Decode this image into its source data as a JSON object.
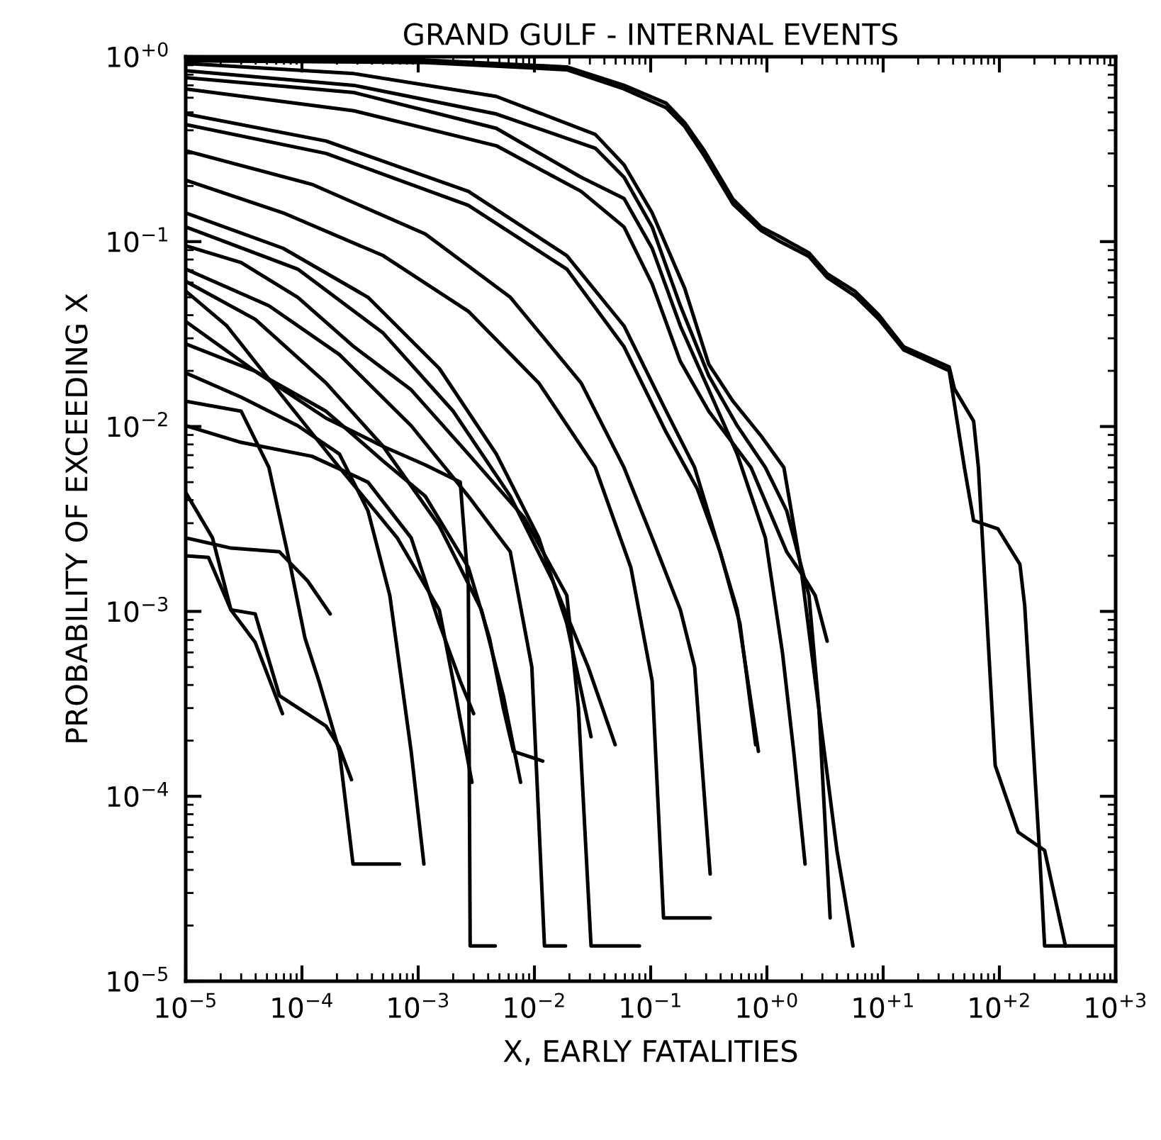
{
  "chart_data": {
    "type": "line",
    "title": "GRAND GULF - INTERNAL EVENTS",
    "xlabel": "X, EARLY FATALITIES",
    "ylabel": "PROBABILITY OF EXCEEDING X",
    "log": "xy",
    "grid": false,
    "legend": false,
    "marker": "none",
    "line_style": "solid",
    "xlim": [
      1e-05,
      1000
    ],
    "ylim": [
      1e-05,
      1
    ],
    "xticks": [
      {
        "value": 1e-05,
        "label": "10$^{−5}$"
      },
      {
        "value": 0.0001,
        "label": "10$^{−4}$"
      },
      {
        "value": 0.001,
        "label": "10$^{−3}$"
      },
      {
        "value": 0.01,
        "label": "10$^{−2}$"
      },
      {
        "value": 0.1,
        "label": "10$^{−1}$"
      },
      {
        "value": 1,
        "label": "10$^{+0}$"
      },
      {
        "value": 10,
        "label": "10$^{+1}$"
      },
      {
        "value": 100,
        "label": "10$^{+2}$"
      },
      {
        "value": 1000,
        "label": "10$^{+3}$"
      }
    ],
    "yticks": [
      {
        "value": 1e-05,
        "label": "10$^{−5}$"
      },
      {
        "value": 0.0001,
        "label": "10$^{−4}$"
      },
      {
        "value": 0.001,
        "label": "10$^{−3}$"
      },
      {
        "value": 0.01,
        "label": "10$^{−2}$"
      },
      {
        "value": 0.1,
        "label": "10$^{−1}$"
      },
      {
        "value": 1,
        "label": "10$^{+0}$"
      }
    ],
    "series": [
      {
        "color": "#000000",
        "x": [
          1e-05,
          0.00115,
          0.019,
          0.059,
          0.136,
          0.196,
          0.29,
          0.51,
          0.89,
          1.3,
          2.3,
          3.3,
          5.7,
          9.2,
          15,
          37,
          41,
          60,
          66,
          92,
          145,
          245,
          370
        ],
        "values": [
          0.98,
          0.96,
          0.88,
          0.7,
          0.56,
          0.44,
          0.31,
          0.17,
          0.12,
          0.106,
          0.087,
          0.067,
          0.054,
          0.04,
          0.027,
          0.021,
          0.016,
          0.0107,
          0.006,
          0.000147,
          6.4e-05,
          5.1e-05,
          1.55e-05
        ]
      },
      {
        "color": "#000000",
        "x": [
          1e-05,
          0.00115,
          0.019,
          0.059,
          0.136,
          0.196,
          0.29,
          0.51,
          0.89,
          1.3,
          2.3,
          3.3,
          5.7,
          9.2,
          15,
          37,
          50,
          60,
          97,
          150,
          165,
          220,
          245,
          950
        ],
        "values": [
          0.95,
          0.93,
          0.85,
          0.67,
          0.53,
          0.42,
          0.29,
          0.16,
          0.115,
          0.1,
          0.083,
          0.064,
          0.051,
          0.038,
          0.026,
          0.02,
          0.006,
          0.0031,
          0.0028,
          0.0018,
          0.00108,
          5.4e-05,
          1.55e-05,
          1.55e-05
        ]
      },
      {
        "color": "#000000",
        "x": [
          1e-05,
          0.00028,
          0.0047,
          0.0334,
          0.059,
          0.103,
          0.196,
          0.316,
          0.51,
          0.89,
          1.4,
          1.96,
          3.0,
          4.0,
          5.5
        ],
        "values": [
          0.92,
          0.81,
          0.61,
          0.38,
          0.26,
          0.143,
          0.056,
          0.0217,
          0.0137,
          0.0089,
          0.006,
          0.00173,
          0.00021,
          5.1e-05,
          1.55e-05
        ]
      },
      {
        "color": "#000000",
        "x": [
          1e-05,
          0.00028,
          0.0047,
          0.0334,
          0.059,
          0.103,
          0.18,
          0.316,
          0.555,
          0.97,
          1.48,
          2.3,
          2.8,
          3.5
        ],
        "values": [
          0.84,
          0.7,
          0.49,
          0.32,
          0.223,
          0.12,
          0.045,
          0.0188,
          0.0101,
          0.006,
          0.0035,
          0.00122,
          0.0003,
          2.2e-05
        ]
      },
      {
        "color": "#000000",
        "x": [
          1e-05,
          0.00028,
          0.0047,
          0.0252,
          0.059,
          0.103,
          0.18,
          0.316,
          0.73,
          1.48,
          2.13,
          2.6,
          3.3
        ],
        "values": [
          0.67,
          0.51,
          0.33,
          0.187,
          0.12,
          0.059,
          0.0225,
          0.0121,
          0.006,
          0.0021,
          0.0015,
          0.00122,
          0.00069
        ]
      },
      {
        "color": "#000000",
        "x": [
          1e-05,
          0.000161,
          0.0027,
          0.019,
          0.059,
          0.136,
          0.239,
          0.364,
          0.555,
          0.845
        ],
        "values": [
          0.49,
          0.35,
          0.187,
          0.084,
          0.035,
          0.0121,
          0.006,
          0.0025,
          0.00102,
          0.000175
        ]
      },
      {
        "color": "#000000",
        "x": [
          1e-05,
          0.000161,
          0.0027,
          0.019,
          0.059,
          0.136,
          0.252,
          0.396,
          0.586,
          0.8
        ],
        "values": [
          0.43,
          0.3,
          0.157,
          0.071,
          0.027,
          0.0093,
          0.0046,
          0.0021,
          0.00086,
          0.00019
        ]
      },
      {
        "color": "#000000",
        "x": [
          1e-05,
          0.000122,
          0.00115,
          0.0062,
          0.0252,
          0.059,
          0.103,
          0.18,
          0.239,
          0.325
        ],
        "values": [
          0.31,
          0.204,
          0.11,
          0.05,
          0.0172,
          0.006,
          0.0025,
          0.00102,
          0.0005,
          3.8e-05
        ]
      },
      {
        "color": "#000000",
        "x": [
          1e-05,
          6.9e-05,
          0.0005,
          0.0027,
          0.0109,
          0.0334,
          0.0675,
          0.103,
          0.129,
          0.325
        ],
        "values": [
          0.215,
          0.143,
          0.084,
          0.042,
          0.0172,
          0.006,
          0.00173,
          0.00042,
          2.2e-05,
          2.2e-05
        ]
      },
      {
        "color": "#000000",
        "x": [
          1e-05,
          0.00028,
          0.0047,
          0.0252,
          0.059,
          0.103,
          0.18,
          0.316,
          0.555,
          0.97,
          1.36,
          1.7,
          2.13
        ],
        "values": [
          0.77,
          0.64,
          0.41,
          0.223,
          0.171,
          0.092,
          0.035,
          0.0158,
          0.0071,
          0.0025,
          0.0006,
          0.000175,
          4.3e-05
        ]
      },
      {
        "color": "#000000",
        "x": [
          1e-05,
          3e-05,
          9.2e-05,
          0.00028,
          0.00087,
          0.0027,
          0.0082,
          0.019,
          0.0239,
          0.0307,
          0.08
        ],
        "values": [
          0.095,
          0.077,
          0.05,
          0.027,
          0.0158,
          0.0071,
          0.0032,
          0.00122,
          0.0003,
          1.55e-05,
          1.55e-05
        ]
      },
      {
        "color": "#000000",
        "x": [
          1e-05,
          5.2e-05,
          0.00021,
          0.00087,
          0.0027,
          0.0062,
          0.0095,
          0.0122,
          0.0185
        ],
        "values": [
          0.071,
          0.045,
          0.0245,
          0.0101,
          0.0042,
          0.0021,
          0.0005,
          1.55e-05,
          1.55e-05
        ]
      },
      {
        "color": "#000000",
        "x": [
          1e-05,
          3.96e-05,
          0.000161,
          0.0005,
          0.00152,
          0.0035,
          0.0054,
          0.0076
        ],
        "values": [
          0.061,
          0.038,
          0.0172,
          0.0078,
          0.0029,
          0.00102,
          0.00035,
          0.000119
        ]
      },
      {
        "color": "#000000",
        "x": [
          1e-05,
          2.26e-05,
          6.9e-05,
          0.00021,
          0.00066,
          0.00152,
          0.002,
          0.0029
        ],
        "values": [
          0.054,
          0.035,
          0.0144,
          0.006,
          0.0025,
          0.00102,
          0.00042,
          0.000119
        ]
      },
      {
        "color": "#000000",
        "x": [
          1e-05,
          3.96e-05,
          0.000161,
          0.0005,
          0.00115,
          0.0023,
          0.0027,
          0.0028,
          0.0046
        ],
        "values": [
          0.037,
          0.0199,
          0.0111,
          0.0078,
          0.0062,
          0.005,
          0.00138,
          1.55e-05,
          1.55e-05
        ]
      },
      {
        "color": "#000000",
        "x": [
          1e-05,
          3.96e-05,
          0.000161,
          0.0005,
          0.00115,
          0.0027,
          0.0041,
          0.0054,
          0.0066,
          0.0118
        ],
        "values": [
          0.028,
          0.0199,
          0.0121,
          0.0065,
          0.0042,
          0.00173,
          0.00072,
          0.0003,
          0.000175,
          0.000155
        ]
      },
      {
        "color": "#000000",
        "x": [
          1e-05,
          3e-05,
          9.2e-05,
          0.00021,
          0.00037,
          0.00057,
          0.00087,
          0.00112
        ],
        "values": [
          0.0195,
          0.0144,
          0.0101,
          0.0071,
          0.0035,
          0.00122,
          0.000175,
          4.3e-05
        ]
      },
      {
        "color": "#000000",
        "x": [
          1e-05,
          3e-05,
          5.2e-05,
          8e-05,
          0.000106,
          0.00014,
          0.00021,
          0.000275,
          0.00069
        ],
        "values": [
          0.0137,
          0.0121,
          0.006,
          0.00173,
          0.00072,
          0.00042,
          0.000175,
          4.3e-05,
          4.3e-05
        ]
      },
      {
        "color": "#000000",
        "x": [
          1e-05,
          1.57e-05,
          2.45e-05,
          3.96e-05,
          6.4e-05,
          0.000161,
          0.00021,
          0.000267
        ],
        "values": [
          0.002,
          0.00196,
          0.00102,
          0.00097,
          0.00035,
          0.00024,
          0.000184,
          0.000123
        ]
      },
      {
        "color": "#000000",
        "x": [
          1e-05,
          1.7e-05,
          2.45e-05,
          3.96e-05,
          6.8e-05
        ],
        "values": [
          0.0044,
          0.0025,
          0.00102,
          0.00068,
          0.00028
        ]
      },
      {
        "color": "#000000",
        "x": [
          1e-05,
          2.45e-05,
          6.4e-05,
          0.000112,
          0.000175
        ],
        "values": [
          0.0025,
          0.0022,
          0.0021,
          0.00146,
          0.00097
        ]
      },
      {
        "color": "#000000",
        "x": [
          1e-05,
          3e-05,
          0.000122,
          0.00037,
          0.00087,
          0.00152,
          0.0023,
          0.003
        ],
        "values": [
          0.0101,
          0.0082,
          0.0069,
          0.005,
          0.0025,
          0.00086,
          0.00042,
          0.00028
        ]
      },
      {
        "color": "#000000",
        "x": [
          1e-05,
          6.9e-05,
          0.00037,
          0.00152,
          0.0047,
          0.0109,
          0.019,
          0.0307
        ],
        "values": [
          0.143,
          0.092,
          0.05,
          0.0206,
          0.0071,
          0.0025,
          0.00086,
          0.00021
        ]
      },
      {
        "color": "#000000",
        "x": [
          1e-05,
          9.2e-05,
          0.0005,
          0.002,
          0.0062,
          0.0144,
          0.029,
          0.0495
        ],
        "values": [
          0.12,
          0.071,
          0.032,
          0.0121,
          0.0042,
          0.00146,
          0.0005,
          0.00019
        ]
      }
    ]
  }
}
